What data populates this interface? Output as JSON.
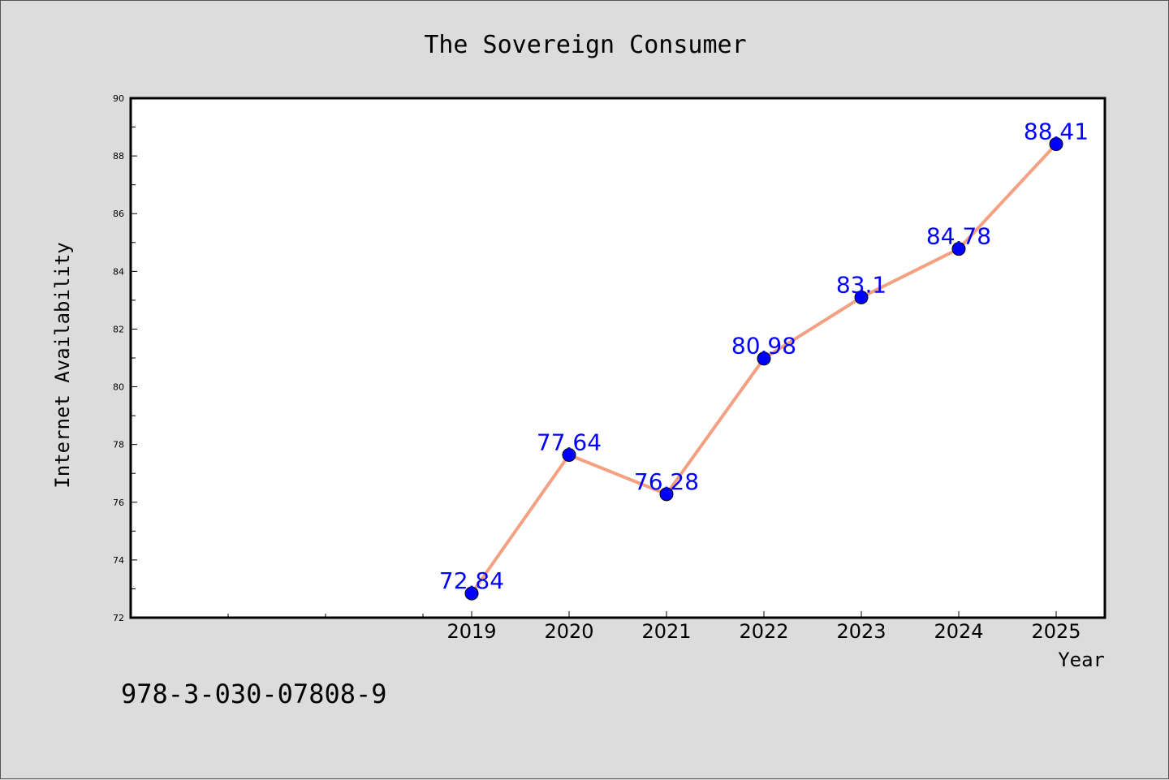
{
  "chart_data": {
    "type": "line",
    "title": "The Sovereign Consumer",
    "xlabel": "Year",
    "ylabel": "Internet Availability",
    "x": [
      2019,
      2020,
      2021,
      2022,
      2023,
      2024,
      2025
    ],
    "series": [
      {
        "values": [
          72.84,
          77.64,
          76.28,
          80.98,
          83.1,
          84.78,
          88.41
        ],
        "labels": [
          "72.84",
          "77.64",
          "76.28",
          "80.98",
          "83.1",
          "84.78",
          "88.41"
        ]
      }
    ],
    "x_tick_labels": [
      "2019",
      "2020",
      "2021",
      "2022",
      "2023",
      "2024",
      "2025"
    ],
    "y_tick_labels": [
      "72",
      "74",
      "76",
      "78",
      "80",
      "82",
      "84",
      "86",
      "88",
      "90"
    ],
    "xlim": [
      2015.5,
      2025.5
    ],
    "ylim": [
      72,
      90
    ],
    "grid": false,
    "colors": {
      "line": "#f4a083",
      "marker": "#0000ff",
      "data_label": "#0000ff",
      "background": "#dcdcdc",
      "plot_background": "#ffffff"
    }
  },
  "footer_code": "978-3-030-07808-9"
}
